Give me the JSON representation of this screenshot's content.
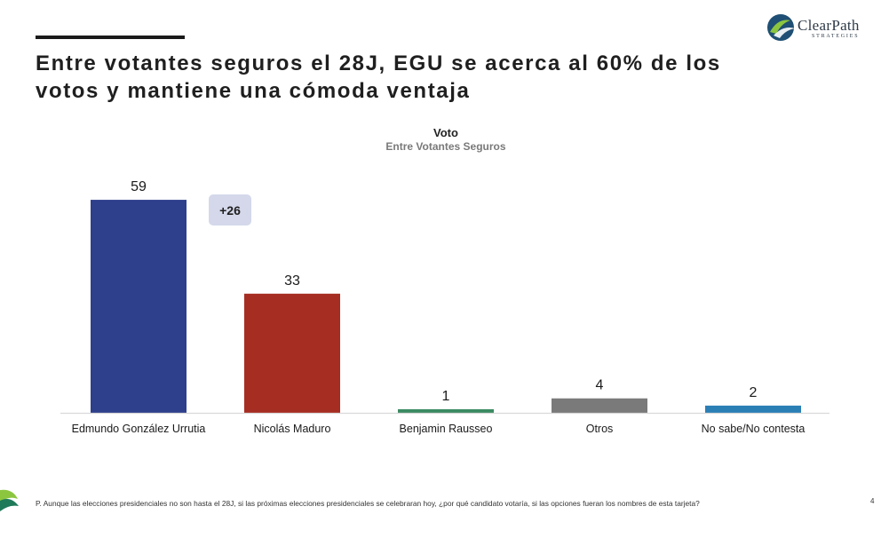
{
  "slide": {
    "headline": "Entre votantes seguros el 28J, EGU se acerca al 60% de los votos y mantiene una cómoda ventaja",
    "logo": {
      "name": "ClearPath",
      "sub": "STRATEGIES",
      "icon": "clearpath-logo-icon"
    },
    "badge": "+26",
    "footnote": "P. Aunque las elecciones presidenciales no son hasta el 28J, si las próximas elecciones presidenciales se celebraran hoy, ¿por qué candidato votaría, si las opciones fueran los nombres de esta tarjeta?",
    "page_number": "4",
    "footer_icon": "clearpath-mark-icon"
  },
  "chart_data": {
    "type": "bar",
    "title": "Voto",
    "subtitle": "Entre Votantes Seguros",
    "xlabel": "",
    "ylabel": "",
    "categories": [
      "Edmundo González Urrutia",
      "Nicolás Maduro",
      "Benjamin Rausseo",
      "Otros",
      "No sabe/No contesta"
    ],
    "values": [
      59,
      33,
      1,
      4,
      2
    ],
    "colors": [
      "#2e3f8c",
      "#a62d22",
      "#3a8a62",
      "#7a7a7a",
      "#2a7fb5"
    ],
    "ylim": [
      0,
      60
    ],
    "grid": false,
    "legend": "none",
    "data_labels": true,
    "axis_line_color": "#d9d9d9"
  }
}
